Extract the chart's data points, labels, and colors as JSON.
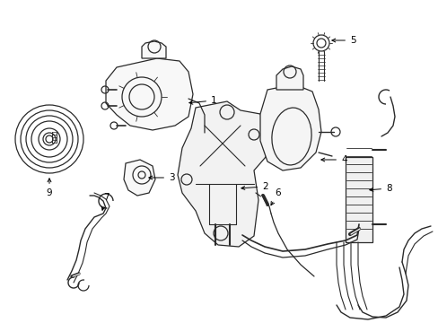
{
  "bg_color": "#ffffff",
  "line_color": "#2a2a2a",
  "label_color": "#000000",
  "fig_width": 4.89,
  "fig_height": 3.6,
  "dpi": 100,
  "lw": 0.9,
  "label_fontsize": 7.5
}
